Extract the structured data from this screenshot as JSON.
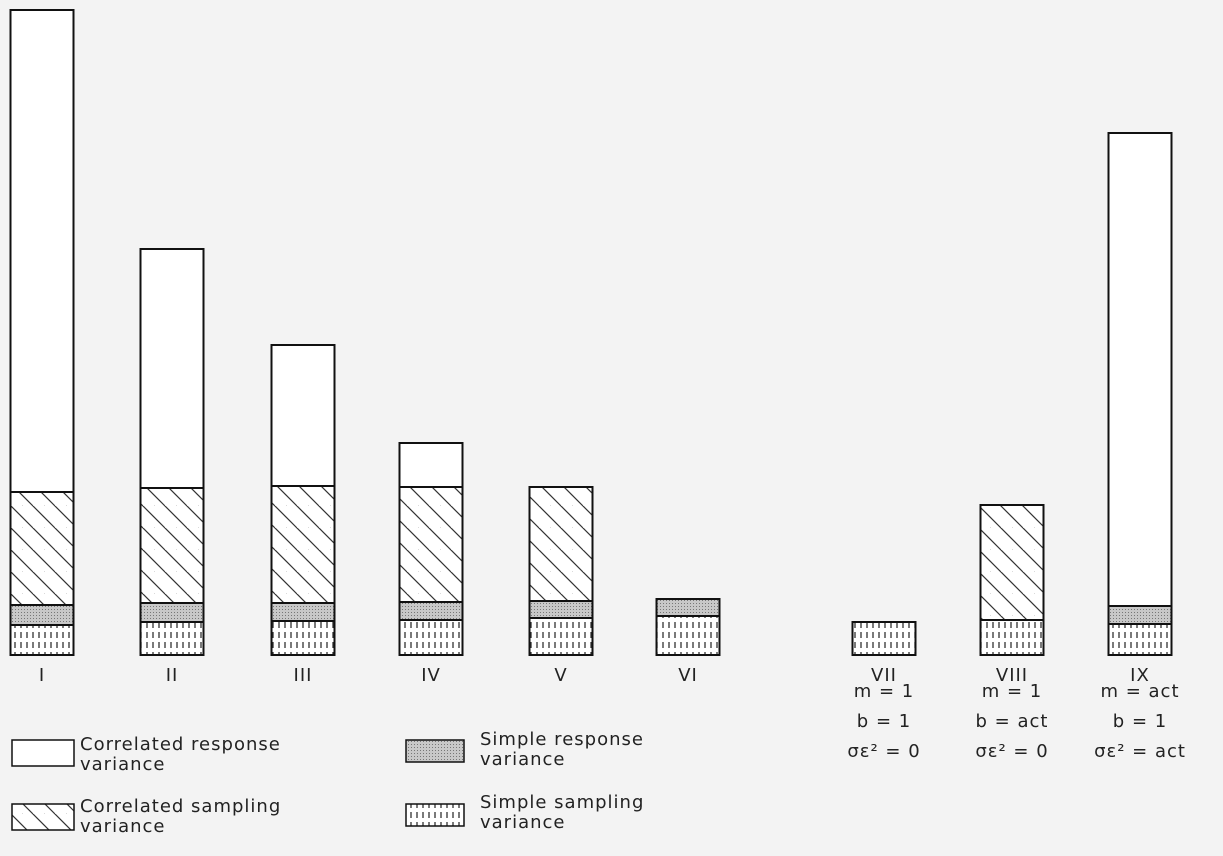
{
  "chart_data": {
    "type": "bar",
    "stacked": true,
    "categories": [
      "I",
      "II",
      "III",
      "IV",
      "V",
      "VI",
      "VII",
      "VIII",
      "IX"
    ],
    "series": [
      {
        "name": "Correlated response variance",
        "color": "#ffffff",
        "pattern": "none",
        "values": [
          482,
          239,
          141,
          44,
          0,
          0,
          0,
          0,
          473
        ]
      },
      {
        "name": "Correlated sampling variance",
        "color": "#ffffff",
        "pattern": "diagonal",
        "values": [
          113,
          115,
          117,
          115,
          114,
          0,
          0,
          115,
          0
        ]
      },
      {
        "name": "Simple response variance",
        "color": "#c4c4c4",
        "pattern": "dots",
        "values": [
          20,
          19,
          18,
          18,
          17,
          17,
          0,
          0,
          18
        ]
      },
      {
        "name": "Simple sampling variance",
        "color": "#ffffff",
        "pattern": "vertical",
        "values": [
          30,
          33,
          34,
          35,
          37,
          39,
          33,
          35,
          31
        ]
      }
    ],
    "annotations": [
      [
        "m = 1",
        "b = 1",
        "σε² = 0"
      ],
      [
        "m = 1",
        "b = act",
        "σε² = 0"
      ],
      [
        "m = act",
        "b = 1",
        "σε² = act"
      ]
    ],
    "ylim": [
      0,
      650
    ]
  }
}
